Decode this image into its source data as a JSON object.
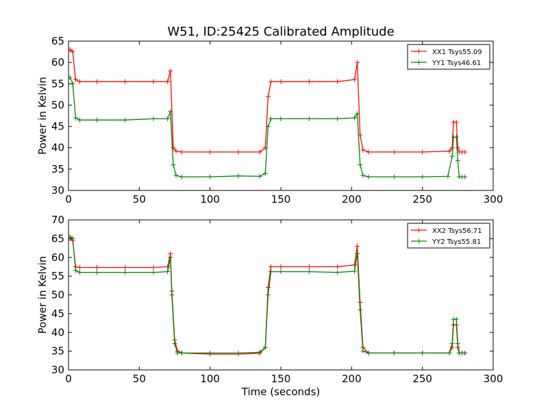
{
  "title": "W51, ID:25425 Calibrated Amplitude",
  "chart_data": [
    {
      "type": "line",
      "ylabel": "Power in Kelvin",
      "xlabel": "",
      "xlim": [
        0,
        300
      ],
      "ylim": [
        30,
        65
      ],
      "xticks": [
        0,
        50,
        100,
        150,
        200,
        250,
        300
      ],
      "yticks": [
        30,
        35,
        40,
        45,
        50,
        55,
        60,
        65
      ],
      "grid": false,
      "legend_position": "top-right",
      "series": [
        {
          "name": "XX1 Tsys55.09",
          "color": "#ff0000",
          "x": [
            1,
            3,
            5,
            8,
            20,
            40,
            60,
            70,
            72,
            74,
            76,
            80,
            100,
            120,
            135,
            139,
            141,
            143,
            150,
            170,
            190,
            202,
            204,
            206,
            208,
            212,
            230,
            250,
            269,
            271,
            272,
            274,
            275,
            276,
            278,
            280
          ],
          "y": [
            63,
            62.5,
            56,
            55.5,
            55.5,
            55.5,
            55.5,
            55.5,
            58,
            40,
            39.2,
            39,
            39,
            39,
            39,
            40,
            52,
            55.5,
            55.5,
            55.5,
            55.5,
            56,
            60,
            43,
            39.5,
            39,
            39,
            39,
            39.2,
            40,
            46,
            46,
            40,
            39,
            39,
            39
          ]
        },
        {
          "name": "YY1 Tsys46.61",
          "color": "#008000",
          "x": [
            1,
            3,
            5,
            8,
            20,
            40,
            60,
            70,
            72,
            74,
            76,
            80,
            100,
            120,
            135,
            139,
            141,
            143,
            150,
            170,
            190,
            202,
            204,
            206,
            208,
            212,
            230,
            250,
            268,
            271,
            272,
            274,
            275,
            276,
            278,
            280
          ],
          "y": [
            56.5,
            55,
            47,
            46.5,
            46.5,
            46.5,
            46.8,
            46.8,
            48.5,
            36,
            33.5,
            33.2,
            33.2,
            33.4,
            33.3,
            34,
            45,
            46.8,
            46.8,
            46.8,
            46.8,
            47,
            48,
            36,
            33.5,
            33.2,
            33.2,
            33.2,
            33.3,
            38,
            42.5,
            42.5,
            37,
            33.2,
            33.2,
            33.2
          ]
        }
      ]
    },
    {
      "type": "line",
      "ylabel": "Power in Kelvin",
      "xlabel": "Time (seconds)",
      "xlim": [
        0,
        300
      ],
      "ylim": [
        30,
        70
      ],
      "xticks": [
        0,
        50,
        100,
        150,
        200,
        250,
        300
      ],
      "yticks": [
        30,
        35,
        40,
        45,
        50,
        55,
        60,
        65,
        70
      ],
      "grid": false,
      "legend_position": "top-right",
      "series": [
        {
          "name": "XX2 Tsys56.71",
          "color": "#ff0000",
          "x": [
            1,
            3,
            5,
            8,
            20,
            40,
            60,
            70,
            72,
            73,
            75,
            77,
            80,
            100,
            120,
            135,
            139,
            141,
            143,
            150,
            170,
            190,
            202,
            204,
            206,
            208,
            212,
            230,
            250,
            269,
            271,
            272,
            274,
            275,
            276,
            278,
            280
          ],
          "y": [
            65,
            64.5,
            57.5,
            57.3,
            57.3,
            57.3,
            57.3,
            57.5,
            61,
            51,
            38,
            35,
            34.5,
            34.2,
            34.2,
            34.4,
            36,
            52,
            57.5,
            57.5,
            57.5,
            57.5,
            58,
            63,
            48,
            36,
            34.5,
            34.5,
            34.5,
            34.5,
            36,
            42,
            42,
            36,
            34.5,
            34.5,
            34.5
          ]
        },
        {
          "name": "YY2 Tsys55.81",
          "color": "#008000",
          "x": [
            1,
            3,
            5,
            8,
            20,
            40,
            60,
            70,
            72,
            73,
            75,
            77,
            80,
            100,
            120,
            135,
            139,
            141,
            143,
            150,
            170,
            190,
            202,
            204,
            206,
            208,
            212,
            230,
            250,
            269,
            271,
            272,
            274,
            275,
            276,
            278,
            280
          ],
          "y": [
            65.5,
            65,
            56.5,
            56,
            56,
            56,
            56,
            56.2,
            60,
            50,
            37,
            34.5,
            34.5,
            34.5,
            34.5,
            34.7,
            36,
            50,
            56.2,
            56.2,
            56.2,
            56,
            56.3,
            61,
            46,
            35,
            34.5,
            34.5,
            34.5,
            34.5,
            37,
            43.5,
            43.5,
            37,
            34.5,
            34.5,
            34.5
          ]
        }
      ]
    }
  ]
}
